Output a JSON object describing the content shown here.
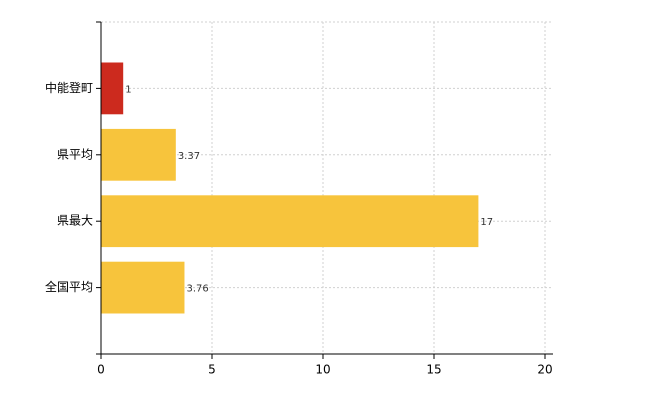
{
  "chart_data": {
    "type": "bar",
    "orientation": "horizontal",
    "categories": [
      "中能登町",
      "県平均",
      "県最大",
      "全国平均"
    ],
    "values": [
      1,
      3.37,
      17,
      3.76
    ],
    "colors": [
      "#cc2a1e",
      "#f7c43c",
      "#f7c43c",
      "#f7c43c"
    ],
    "xlim": [
      0,
      20
    ],
    "xticks": [
      0,
      5,
      10,
      15,
      20
    ],
    "grid": true
  }
}
